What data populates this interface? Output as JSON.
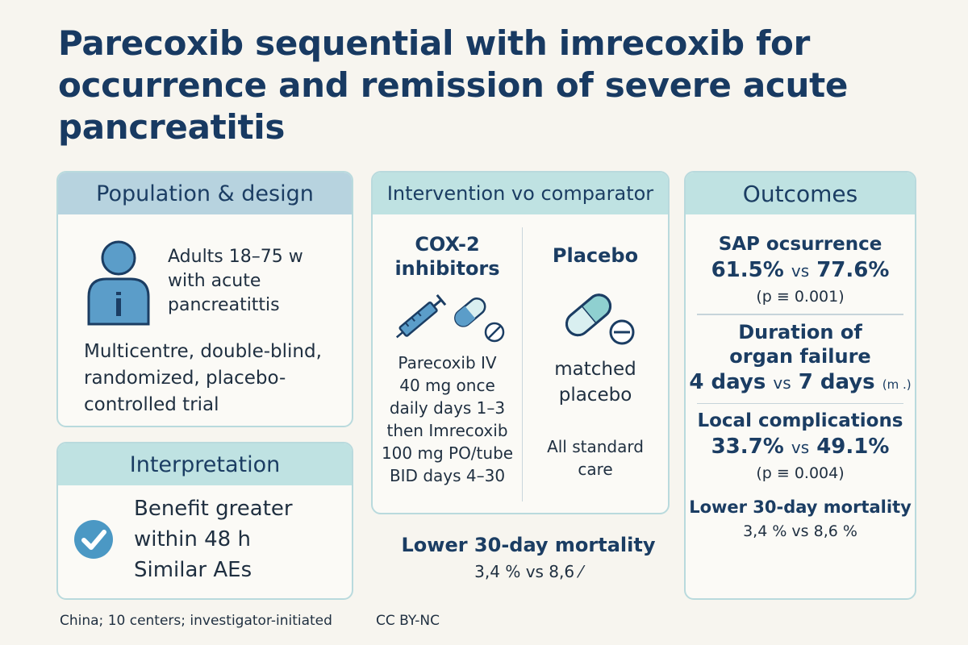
{
  "title": "Parecoxib sequential with imrecoxib for occurrence and remission of severe acute pancreatitis",
  "population": {
    "heading": "Population & design",
    "patients_line1": "Adults 18–75 w",
    "patients_line2": "with acute",
    "patients_line3": "pancreatittis",
    "design_line1": "Multicentre, double-blind,",
    "design_line2": "randomized, placebo-",
    "design_line3": "controlled trial",
    "icon": "person-info-icon"
  },
  "interpretation": {
    "heading": "Interpretation",
    "line1": "Benefit greater",
    "line2": "within 48 h",
    "line3": "Similar AEs",
    "icon": "check-circle-icon"
  },
  "intervention": {
    "heading": "Intervention vo comparator",
    "left_title_line1": "COX-2",
    "left_title_line2": "inhibitors",
    "left_lines": [
      "Parecoxib IV",
      "40 mg once",
      "daily days 1–3",
      "then Imrecoxib",
      "100 mg PO/tube",
      "BID days 4–30"
    ],
    "right_title": "Placebo",
    "right_line1": "matched",
    "right_line2": "placebo",
    "care_line1": "All standard",
    "care_line2": "care",
    "icons": [
      "syringe-icon",
      "capsule-icon",
      "tablet-icon"
    ]
  },
  "mortality_mid": {
    "title": "Lower 30-day mortality",
    "value": "3,4 % vs 8,6 ⁄"
  },
  "outcomes": {
    "heading": "Outcomes",
    "sap_label": "SAP ocsurrence",
    "sap_a": "61.5%",
    "sap_vs": "vs",
    "sap_b": "77.6%",
    "sap_p": "(p ≡ 0.001)",
    "dur_label1": "Duration of",
    "dur_label2": "organ failure",
    "dur_a": "4 days",
    "dur_vs": "vs",
    "dur_b": "7 days",
    "dur_unit": "(m .)",
    "local_label": "Local complications",
    "local_a": "33.7%",
    "local_vs": "vs",
    "local_b": "49.1%",
    "local_p": "(p ≡ 0.004)",
    "mort_label": "Lower 30-day mortality",
    "mort_value": "3,4 % vs 8,6 %"
  },
  "footer": {
    "left": "China; 10 centers; investigator-initiated",
    "right": "CC BY-NC"
  },
  "colors": {
    "title": "#183a62",
    "head_blue": "#b7d3df",
    "head_teal": "#bfe2e2",
    "icon_blue": "#5b9dc9",
    "icon_teal": "#8fd0d0"
  }
}
